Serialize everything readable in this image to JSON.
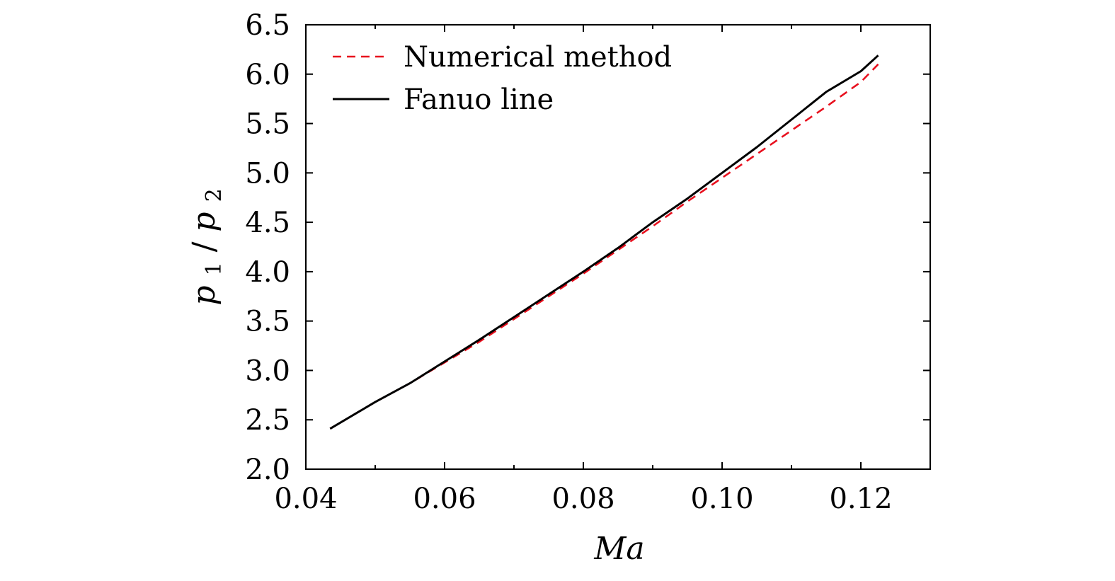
{
  "chart_data": {
    "type": "line",
    "title": "",
    "xlabel": "Ma",
    "ylabel": {
      "base": "p",
      "sub1": "1",
      "slash": "/",
      "sub2": "2"
    },
    "xlim": [
      0.04,
      0.13
    ],
    "ylim": [
      2.0,
      6.5
    ],
    "xticks": [
      0.04,
      0.06,
      0.08,
      0.1,
      0.12
    ],
    "xtick_labels": [
      "0.04",
      "0.06",
      "0.08",
      "0.10",
      "0.12"
    ],
    "x_minor_ticks": [
      0.05,
      0.07,
      0.09,
      0.11
    ],
    "yticks": [
      2.0,
      2.5,
      3.0,
      3.5,
      4.0,
      4.5,
      5.0,
      5.5,
      6.0,
      6.5
    ],
    "ytick_labels": [
      "2.0",
      "2.5",
      "3.0",
      "3.5",
      "4.0",
      "4.5",
      "5.0",
      "5.5",
      "6.0",
      "6.5"
    ],
    "grid": false,
    "legend_position": "top-left",
    "series": [
      {
        "name": "Numerical method",
        "color": "#e8101e",
        "style": "dashed",
        "x": [
          0.0435,
          0.05,
          0.055,
          0.06,
          0.065,
          0.07,
          0.075,
          0.08,
          0.085,
          0.09,
          0.095,
          0.1,
          0.105,
          0.11,
          0.115,
          0.12,
          0.1225
        ],
        "y": [
          2.41,
          2.68,
          2.87,
          3.08,
          3.29,
          3.52,
          3.75,
          3.98,
          4.22,
          4.46,
          4.71,
          4.95,
          5.19,
          5.43,
          5.67,
          5.92,
          6.1
        ]
      },
      {
        "name": "Fanuo line",
        "color": "#000000",
        "style": "solid",
        "x": [
          0.0435,
          0.05,
          0.055,
          0.06,
          0.065,
          0.07,
          0.075,
          0.08,
          0.085,
          0.09,
          0.095,
          0.1,
          0.105,
          0.11,
          0.115,
          0.12,
          0.1225
        ],
        "y": [
          2.41,
          2.68,
          2.87,
          3.09,
          3.31,
          3.54,
          3.77,
          4.0,
          4.24,
          4.5,
          4.74,
          5.0,
          5.26,
          5.54,
          5.82,
          6.03,
          6.19
        ]
      }
    ]
  }
}
